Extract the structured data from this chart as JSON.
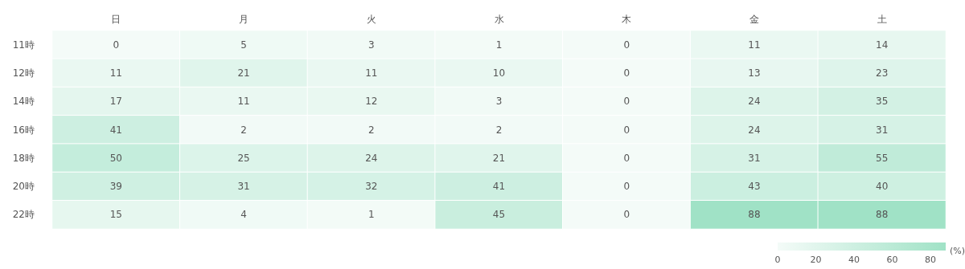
{
  "chart_data": {
    "type": "heatmap",
    "categories": [
      "日",
      "月",
      "火",
      "水",
      "木",
      "金",
      "土"
    ],
    "y_categories": [
      "11時",
      "12時",
      "14時",
      "16時",
      "18時",
      "20時",
      "22時"
    ],
    "cells": [
      [
        0,
        5,
        3,
        1,
        0,
        11,
        14
      ],
      [
        11,
        21,
        11,
        10,
        0,
        13,
        23
      ],
      [
        17,
        11,
        12,
        3,
        0,
        24,
        35
      ],
      [
        41,
        2,
        2,
        2,
        0,
        24,
        31
      ],
      [
        50,
        25,
        24,
        21,
        0,
        31,
        55
      ],
      [
        39,
        31,
        32,
        41,
        0,
        43,
        40
      ],
      [
        15,
        4,
        1,
        45,
        0,
        88,
        88
      ]
    ],
    "data_labels": true,
    "clim": [
      0,
      88
    ],
    "cticks": [
      0,
      20,
      40,
      60,
      80
    ],
    "clabel": "(%)"
  }
}
